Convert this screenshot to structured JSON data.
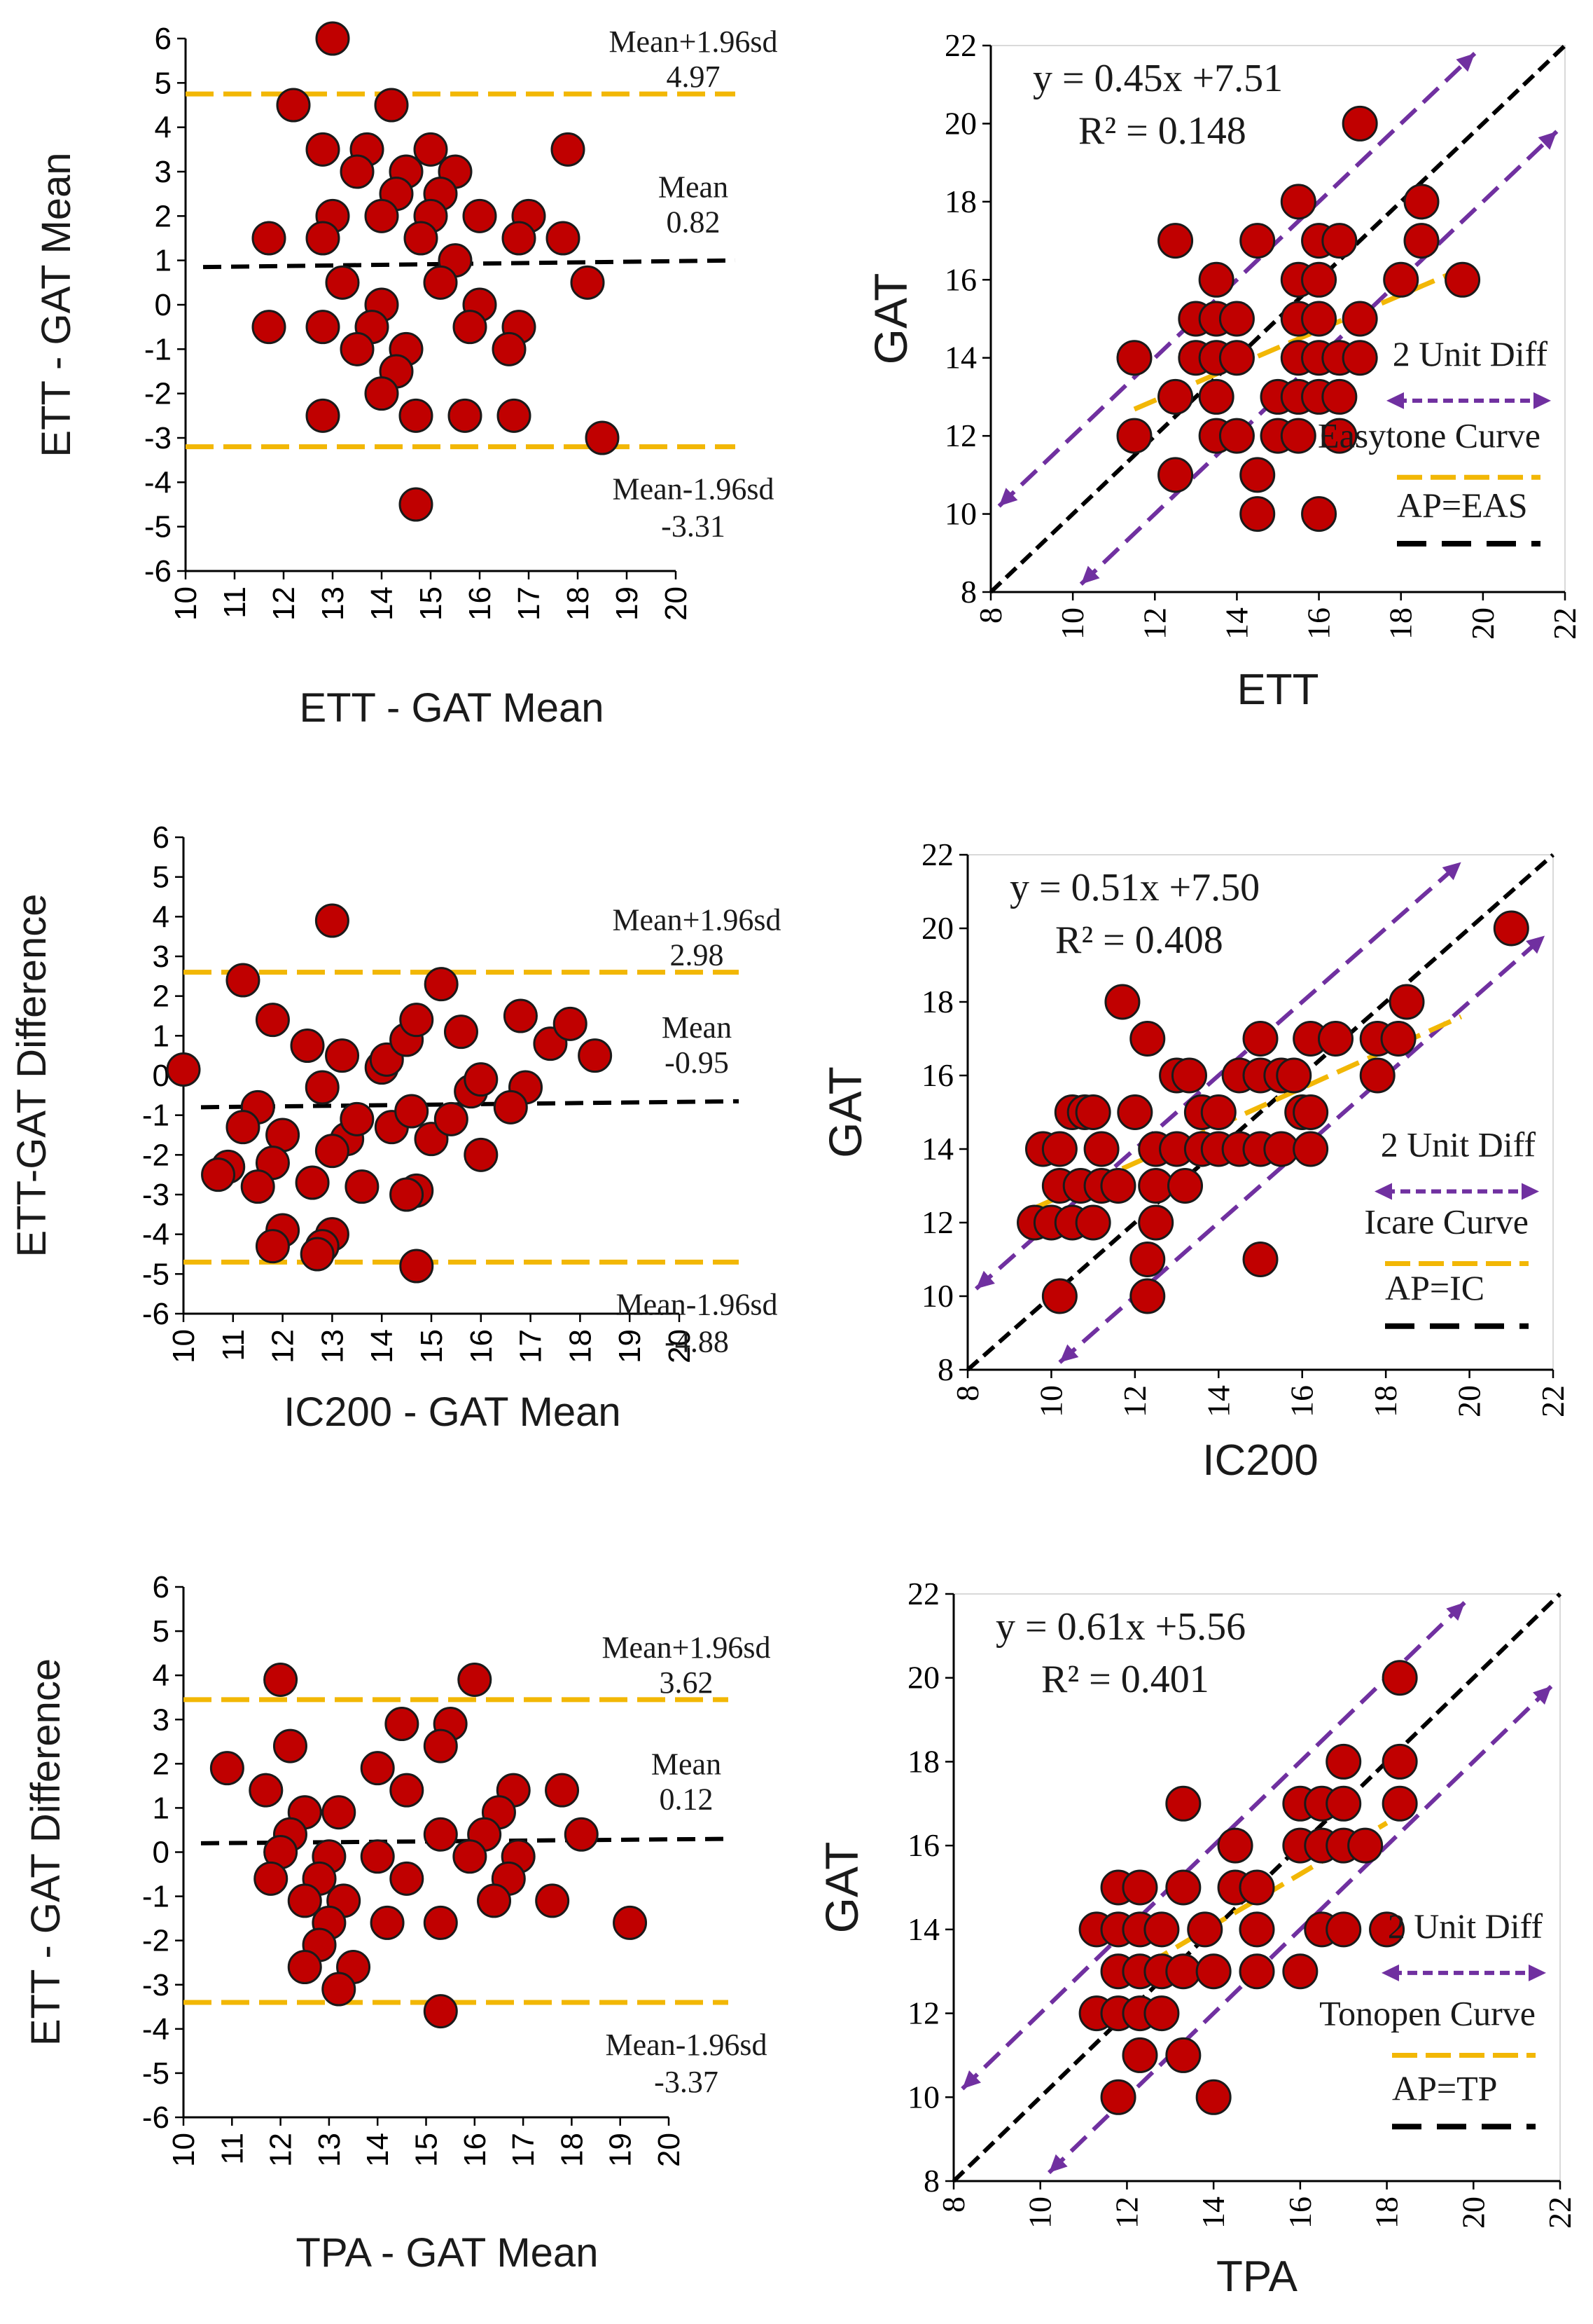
{
  "colors": {
    "point_fill": "#c00000",
    "point_stroke": "#1a1a1a",
    "limit_line": "#f2b705",
    "mean_line": "#000000",
    "unit_diff_line": "#7030a0",
    "fit_line": "#f2b705",
    "identity_line": "#000000",
    "axis": "#000000",
    "grid": "#d9d9d9"
  },
  "chart_data": [
    {
      "type": "scatter",
      "variant": "bland-altman",
      "xlabel": "ETT - GAT Mean",
      "ylabel": "ETT - GAT Mean",
      "xlim": [
        10,
        20
      ],
      "ylim": [
        -6,
        6
      ],
      "x_ticks": [
        "10",
        "11",
        "12",
        "13",
        "14",
        "15",
        "16",
        "17",
        "18",
        "19",
        "20"
      ],
      "y_ticks": [
        "-6",
        "-5",
        "-4",
        "-3",
        "-2",
        "-1",
        "0",
        "1",
        "2",
        "3",
        "4",
        "5",
        "6"
      ],
      "upper_label": "Mean+1.96sd",
      "upper_value": "4.97",
      "mean_label": "Mean",
      "mean_value": "0.82",
      "lower_label": "Mean-1.96sd",
      "lower_value": "-3.31",
      "upper_line": 4.75,
      "mean_line": [
        0.85,
        1.0
      ],
      "lower_line": -3.2,
      "points": [
        [
          13.0,
          6.0
        ],
        [
          12.2,
          4.5
        ],
        [
          14.2,
          4.5
        ],
        [
          12.8,
          3.5
        ],
        [
          13.7,
          3.5
        ],
        [
          15.0,
          3.5
        ],
        [
          13.5,
          3.0
        ],
        [
          14.5,
          3.0
        ],
        [
          15.5,
          3.0
        ],
        [
          17.8,
          3.5
        ],
        [
          14.3,
          2.5
        ],
        [
          15.2,
          2.5
        ],
        [
          13.0,
          2.0
        ],
        [
          14.0,
          2.0
        ],
        [
          15.0,
          2.0
        ],
        [
          16.0,
          2.0
        ],
        [
          17.0,
          2.0
        ],
        [
          11.7,
          1.5
        ],
        [
          12.8,
          1.5
        ],
        [
          14.8,
          1.5
        ],
        [
          16.8,
          1.5
        ],
        [
          17.7,
          1.5
        ],
        [
          15.5,
          1.0
        ],
        [
          13.2,
          0.5
        ],
        [
          15.2,
          0.5
        ],
        [
          18.2,
          0.5
        ],
        [
          14.0,
          0.0
        ],
        [
          16.0,
          0.0
        ],
        [
          11.7,
          -0.5
        ],
        [
          12.8,
          -0.5
        ],
        [
          13.8,
          -0.5
        ],
        [
          15.8,
          -0.5
        ],
        [
          16.8,
          -0.5
        ],
        [
          13.5,
          -1.0
        ],
        [
          14.5,
          -1.0
        ],
        [
          16.6,
          -1.0
        ],
        [
          14.3,
          -1.5
        ],
        [
          14.0,
          -2.0
        ],
        [
          12.8,
          -2.5
        ],
        [
          14.7,
          -2.5
        ],
        [
          15.7,
          -2.5
        ],
        [
          16.7,
          -2.5
        ],
        [
          18.5,
          -3.0
        ],
        [
          14.7,
          -4.5
        ]
      ]
    },
    {
      "type": "scatter",
      "variant": "correlation",
      "xlabel": "ETT",
      "ylabel": "GAT",
      "xlim": [
        8,
        22
      ],
      "ylim": [
        8,
        22
      ],
      "x_ticks": [
        "8",
        "10",
        "12",
        "14",
        "16",
        "18",
        "20",
        "22"
      ],
      "y_ticks": [
        "8",
        "10",
        "12",
        "14",
        "16",
        "18",
        "20",
        "22"
      ],
      "equation": "y = 0.45x +7.51",
      "r_squared": "R² = 0.148",
      "fit": {
        "slope": 0.45,
        "intercept": 7.51,
        "x_range": [
          11.5,
          19.5
        ]
      },
      "legend": {
        "unit_diff": "2 Unit Diff",
        "curve": "Easytone Curve",
        "identity": "AP=EAS"
      },
      "points": [
        [
          17.0,
          20.0
        ],
        [
          15.5,
          18.0
        ],
        [
          18.5,
          18.0
        ],
        [
          12.5,
          17.0
        ],
        [
          14.5,
          17.0
        ],
        [
          16.0,
          17.0
        ],
        [
          16.5,
          17.0
        ],
        [
          18.5,
          17.0
        ],
        [
          13.5,
          16.0
        ],
        [
          15.5,
          16.0
        ],
        [
          16.0,
          16.0
        ],
        [
          18.0,
          16.0
        ],
        [
          19.5,
          16.0
        ],
        [
          13.0,
          15.0
        ],
        [
          13.5,
          15.0
        ],
        [
          14.0,
          15.0
        ],
        [
          15.5,
          15.0
        ],
        [
          16.0,
          15.0
        ],
        [
          17.0,
          15.0
        ],
        [
          11.5,
          14.0
        ],
        [
          13.0,
          14.0
        ],
        [
          13.5,
          14.0
        ],
        [
          14.0,
          14.0
        ],
        [
          15.5,
          14.0
        ],
        [
          16.0,
          14.0
        ],
        [
          16.5,
          14.0
        ],
        [
          17.0,
          14.0
        ],
        [
          12.5,
          13.0
        ],
        [
          13.5,
          13.0
        ],
        [
          15.0,
          13.0
        ],
        [
          15.5,
          13.0
        ],
        [
          16.0,
          13.0
        ],
        [
          16.5,
          13.0
        ],
        [
          11.5,
          12.0
        ],
        [
          13.5,
          12.0
        ],
        [
          14.0,
          12.0
        ],
        [
          15.0,
          12.0
        ],
        [
          15.5,
          12.0
        ],
        [
          16.5,
          12.0
        ],
        [
          12.5,
          11.0
        ],
        [
          14.5,
          11.0
        ],
        [
          14.5,
          10.0
        ],
        [
          16.0,
          10.0
        ]
      ]
    },
    {
      "type": "scatter",
      "variant": "bland-altman",
      "xlabel": "IC200 - GAT Mean",
      "ylabel": "ETT-GAT Difference",
      "xlim": [
        10,
        20
      ],
      "ylim": [
        -6,
        6
      ],
      "x_ticks": [
        "10",
        "11",
        "12",
        "13",
        "14",
        "15",
        "16",
        "17",
        "18",
        "19",
        "20"
      ],
      "y_ticks": [
        "-6",
        "-5",
        "-4",
        "-3",
        "-2",
        "-1",
        "0",
        "1",
        "2",
        "3",
        "4",
        "5",
        "6"
      ],
      "upper_label": "Mean+1.96sd",
      "upper_value": "2.98",
      "mean_label": "Mean",
      "mean_value": "-0.95",
      "lower_label": "Mean-1.96sd",
      "lower_value": "-4.88",
      "upper_line": 2.6,
      "mean_line": [
        -0.8,
        -0.65
      ],
      "lower_line": -4.7,
      "points": [
        [
          10.0,
          0.15
        ],
        [
          13.0,
          3.9
        ],
        [
          11.2,
          2.4
        ],
        [
          11.8,
          1.4
        ],
        [
          12.5,
          0.75
        ],
        [
          13.2,
          0.5
        ],
        [
          12.8,
          -0.3
        ],
        [
          11.5,
          -0.8
        ],
        [
          11.2,
          -1.3
        ],
        [
          12.0,
          -1.5
        ],
        [
          11.8,
          -2.2
        ],
        [
          10.9,
          -2.3
        ],
        [
          10.7,
          -2.5
        ],
        [
          11.5,
          -2.8
        ],
        [
          12.6,
          -2.7
        ],
        [
          13.3,
          -1.6
        ],
        [
          13.0,
          -1.9
        ],
        [
          13.5,
          -1.1
        ],
        [
          14.0,
          0.2
        ],
        [
          14.1,
          0.4
        ],
        [
          14.5,
          0.9
        ],
        [
          14.7,
          1.4
        ],
        [
          14.2,
          -1.3
        ],
        [
          14.6,
          -0.9
        ],
        [
          13.6,
          -2.8
        ],
        [
          14.7,
          -2.9
        ],
        [
          14.5,
          -3.0
        ],
        [
          15.2,
          2.3
        ],
        [
          15.6,
          1.1
        ],
        [
          15.0,
          -1.6
        ],
        [
          15.4,
          -1.1
        ],
        [
          15.8,
          -0.4
        ],
        [
          16.0,
          -0.1
        ],
        [
          16.0,
          -2.0
        ],
        [
          16.8,
          1.5
        ],
        [
          16.9,
          -0.3
        ],
        [
          16.6,
          -0.8
        ],
        [
          17.4,
          0.8
        ],
        [
          17.8,
          1.3
        ],
        [
          18.3,
          0.5
        ],
        [
          12.0,
          -3.9
        ],
        [
          11.8,
          -4.3
        ],
        [
          13.0,
          -4.0
        ],
        [
          12.8,
          -4.3
        ],
        [
          12.7,
          -4.5
        ],
        [
          14.7,
          -4.8
        ]
      ]
    },
    {
      "type": "scatter",
      "variant": "correlation",
      "xlabel": "IC200",
      "ylabel": "GAT",
      "xlim": [
        8,
        22
      ],
      "ylim": [
        8,
        22
      ],
      "x_ticks": [
        "8",
        "10",
        "12",
        "14",
        "16",
        "18",
        "20",
        "22"
      ],
      "y_ticks": [
        "8",
        "10",
        "12",
        "14",
        "16",
        "18",
        "20",
        "22"
      ],
      "equation": "y = 0.51x +7.50",
      "r_squared": "R² = 0.408",
      "fit": {
        "slope": 0.51,
        "intercept": 7.5,
        "x_range": [
          9.5,
          19.8
        ]
      },
      "legend": {
        "unit_diff": "2 Unit Diff",
        "curve": "Icare Curve",
        "identity": "AP=IC"
      },
      "points": [
        [
          21.0,
          20.0
        ],
        [
          11.7,
          18.0
        ],
        [
          18.5,
          18.0
        ],
        [
          12.3,
          17.0
        ],
        [
          15.0,
          17.0
        ],
        [
          16.2,
          17.0
        ],
        [
          16.8,
          17.0
        ],
        [
          17.8,
          17.0
        ],
        [
          18.3,
          17.0
        ],
        [
          13.0,
          16.0
        ],
        [
          13.3,
          16.0
        ],
        [
          14.5,
          16.0
        ],
        [
          15.0,
          16.0
        ],
        [
          15.5,
          16.0
        ],
        [
          15.8,
          16.0
        ],
        [
          17.8,
          16.0
        ],
        [
          10.5,
          15.0
        ],
        [
          10.8,
          15.0
        ],
        [
          11.0,
          15.0
        ],
        [
          12.0,
          15.0
        ],
        [
          13.6,
          15.0
        ],
        [
          14.0,
          15.0
        ],
        [
          16.0,
          15.0
        ],
        [
          16.2,
          15.0
        ],
        [
          9.8,
          14.0
        ],
        [
          10.2,
          14.0
        ],
        [
          11.2,
          14.0
        ],
        [
          12.5,
          14.0
        ],
        [
          13.0,
          14.0
        ],
        [
          13.6,
          14.0
        ],
        [
          14.0,
          14.0
        ],
        [
          14.5,
          14.0
        ],
        [
          15.0,
          14.0
        ],
        [
          15.5,
          14.0
        ],
        [
          16.2,
          14.0
        ],
        [
          10.2,
          13.0
        ],
        [
          10.7,
          13.0
        ],
        [
          11.2,
          13.0
        ],
        [
          11.6,
          13.0
        ],
        [
          12.5,
          13.0
        ],
        [
          13.2,
          13.0
        ],
        [
          9.6,
          12.0
        ],
        [
          10.0,
          12.0
        ],
        [
          10.5,
          12.0
        ],
        [
          11.0,
          12.0
        ],
        [
          12.5,
          12.0
        ],
        [
          12.3,
          11.0
        ],
        [
          15.0,
          11.0
        ],
        [
          10.2,
          10.0
        ],
        [
          12.3,
          10.0
        ]
      ]
    },
    {
      "type": "scatter",
      "variant": "bland-altman",
      "xlabel": "TPA - GAT Mean",
      "ylabel": "ETT - GAT Difference",
      "xlim": [
        10,
        20
      ],
      "ylim": [
        -6,
        6
      ],
      "x_ticks": [
        "10",
        "11",
        "12",
        "13",
        "14",
        "15",
        "16",
        "17",
        "18",
        "19",
        "20"
      ],
      "y_ticks": [
        "-6",
        "-5",
        "-4",
        "-3",
        "-2",
        "-1",
        "0",
        "1",
        "2",
        "3",
        "4",
        "5",
        "6"
      ],
      "upper_label": "Mean+1.96sd",
      "upper_value": "3.62",
      "mean_label": "Mean",
      "mean_value": "0.12",
      "lower_label": "Mean-1.96sd",
      "lower_value": "-3.37",
      "upper_line": 3.45,
      "mean_line": [
        0.2,
        0.3
      ],
      "lower_line": -3.4,
      "points": [
        [
          12.0,
          3.9
        ],
        [
          16.0,
          3.9
        ],
        [
          14.5,
          2.9
        ],
        [
          15.5,
          2.9
        ],
        [
          15.3,
          2.4
        ],
        [
          12.2,
          2.4
        ],
        [
          10.9,
          1.9
        ],
        [
          14.0,
          1.9
        ],
        [
          11.7,
          1.4
        ],
        [
          14.6,
          1.4
        ],
        [
          16.8,
          1.4
        ],
        [
          17.8,
          1.4
        ],
        [
          12.5,
          0.9
        ],
        [
          13.2,
          0.9
        ],
        [
          16.5,
          0.9
        ],
        [
          12.2,
          0.4
        ],
        [
          15.3,
          0.4
        ],
        [
          16.2,
          0.4
        ],
        [
          18.2,
          0.4
        ],
        [
          12.0,
          0.0
        ],
        [
          13.0,
          -0.1
        ],
        [
          14.0,
          -0.1
        ],
        [
          15.9,
          -0.1
        ],
        [
          16.9,
          -0.1
        ],
        [
          11.8,
          -0.6
        ],
        [
          12.8,
          -0.6
        ],
        [
          14.6,
          -0.6
        ],
        [
          16.7,
          -0.6
        ],
        [
          12.5,
          -1.1
        ],
        [
          13.3,
          -1.1
        ],
        [
          16.4,
          -1.1
        ],
        [
          17.6,
          -1.1
        ],
        [
          13.0,
          -1.6
        ],
        [
          14.2,
          -1.6
        ],
        [
          15.3,
          -1.6
        ],
        [
          19.2,
          -1.6
        ],
        [
          12.8,
          -2.1
        ],
        [
          12.5,
          -2.6
        ],
        [
          13.5,
          -2.6
        ],
        [
          13.2,
          -3.1
        ],
        [
          15.3,
          -3.6
        ]
      ]
    },
    {
      "type": "scatter",
      "variant": "correlation",
      "xlabel": "TPA",
      "ylabel": "GAT",
      "xlim": [
        8,
        22
      ],
      "ylim": [
        8,
        22
      ],
      "x_ticks": [
        "8",
        "10",
        "12",
        "14",
        "16",
        "18",
        "20",
        "22"
      ],
      "y_ticks": [
        "8",
        "10",
        "12",
        "14",
        "16",
        "18",
        "20",
        "22"
      ],
      "equation": "y = 0.61x +5.56",
      "r_squared": "R² = 0.401",
      "fit": {
        "slope": 0.61,
        "intercept": 5.56,
        "x_range": [
          11.8,
          18.0
        ]
      },
      "legend": {
        "unit_diff": "2 Unit Diff",
        "curve": "Tonopen Curve",
        "identity": "AP=TP"
      },
      "points": [
        [
          18.3,
          20.0
        ],
        [
          17.0,
          18.0
        ],
        [
          18.3,
          18.0
        ],
        [
          13.3,
          17.0
        ],
        [
          16.0,
          17.0
        ],
        [
          16.5,
          17.0
        ],
        [
          17.0,
          17.0
        ],
        [
          18.3,
          17.0
        ],
        [
          14.5,
          16.0
        ],
        [
          16.0,
          16.0
        ],
        [
          16.5,
          16.0
        ],
        [
          17.0,
          16.0
        ],
        [
          17.5,
          16.0
        ],
        [
          11.8,
          15.0
        ],
        [
          12.3,
          15.0
        ],
        [
          13.3,
          15.0
        ],
        [
          14.5,
          15.0
        ],
        [
          15.0,
          15.0
        ],
        [
          11.3,
          14.0
        ],
        [
          11.8,
          14.0
        ],
        [
          12.3,
          14.0
        ],
        [
          12.8,
          14.0
        ],
        [
          13.8,
          14.0
        ],
        [
          15.0,
          14.0
        ],
        [
          16.5,
          14.0
        ],
        [
          17.0,
          14.0
        ],
        [
          18.0,
          14.0
        ],
        [
          11.8,
          13.0
        ],
        [
          12.3,
          13.0
        ],
        [
          12.8,
          13.0
        ],
        [
          13.3,
          13.0
        ],
        [
          14.0,
          13.0
        ],
        [
          15.0,
          13.0
        ],
        [
          16.0,
          13.0
        ],
        [
          11.3,
          12.0
        ],
        [
          11.8,
          12.0
        ],
        [
          12.3,
          12.0
        ],
        [
          12.8,
          12.0
        ],
        [
          12.3,
          11.0
        ],
        [
          13.3,
          11.0
        ],
        [
          11.8,
          10.0
        ],
        [
          14.0,
          10.0
        ]
      ]
    }
  ]
}
